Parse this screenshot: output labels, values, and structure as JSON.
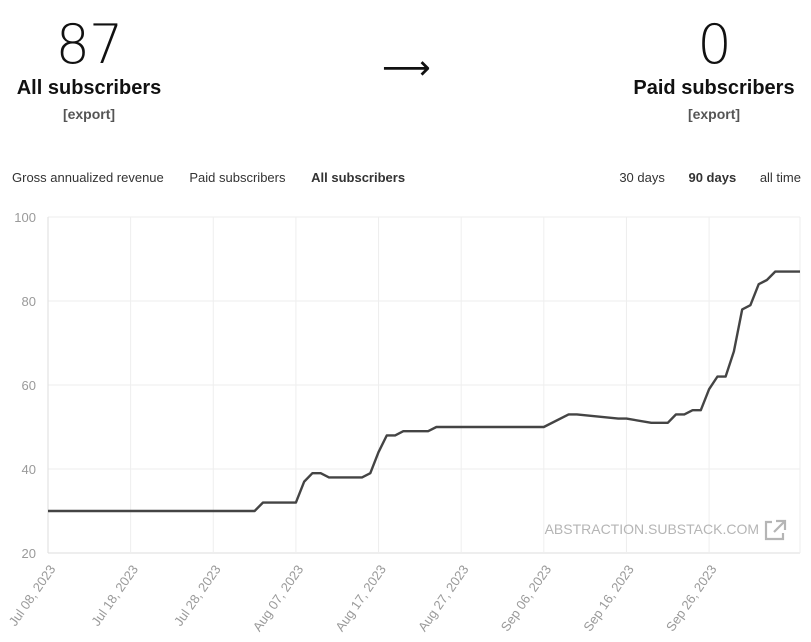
{
  "stats": {
    "left": {
      "value": "87",
      "label": "All subscribers",
      "export": "[export]"
    },
    "arrow": "⟶",
    "right": {
      "value": "0",
      "label": "Paid subscribers",
      "export": "[export]"
    }
  },
  "metric_tabs": [
    "Gross annualized revenue",
    "Paid subscribers",
    "All subscribers"
  ],
  "active_metric": "All subscribers",
  "range_tabs": [
    "30 days",
    "90 days",
    "all time"
  ],
  "active_range": "90 days",
  "watermark": "ABSTRACTION.SUBSTACK.COM",
  "colors": {
    "line": "#444444",
    "grid": "#eeeeee",
    "tick": "#9a9a9a"
  },
  "chart_data": {
    "type": "line",
    "title": "",
    "xlabel": "",
    "ylabel": "",
    "ylim": [
      20,
      100
    ],
    "yticks": [
      20,
      40,
      60,
      80,
      100
    ],
    "xlim": [
      "2023-07-08",
      "2023-10-07"
    ],
    "xticks": [
      "Jul 08, 2023",
      "Jul 18, 2023",
      "Jul 28, 2023",
      "Aug 07, 2023",
      "Aug 17, 2023",
      "Aug 27, 2023",
      "Sep 06, 2023",
      "Sep 16, 2023",
      "Sep 26, 2023"
    ],
    "grid": true,
    "series": [
      {
        "x": [
          "2023-07-08",
          "2023-07-18",
          "2023-07-28",
          "2023-08-02",
          "2023-08-03",
          "2023-08-07",
          "2023-08-08",
          "2023-08-09",
          "2023-08-10",
          "2023-08-11",
          "2023-08-12",
          "2023-08-15",
          "2023-08-16",
          "2023-08-17",
          "2023-08-18",
          "2023-08-19",
          "2023-08-20",
          "2023-08-23",
          "2023-08-24",
          "2023-09-05",
          "2023-09-06",
          "2023-09-09",
          "2023-09-10",
          "2023-09-15",
          "2023-09-16",
          "2023-09-19",
          "2023-09-20",
          "2023-09-21",
          "2023-09-22",
          "2023-09-23",
          "2023-09-24",
          "2023-09-25",
          "2023-09-26",
          "2023-09-27",
          "2023-09-28",
          "2023-09-29",
          "2023-09-30",
          "2023-10-01",
          "2023-10-02",
          "2023-10-03",
          "2023-10-04",
          "2023-10-05",
          "2023-10-06",
          "2023-10-07"
        ],
        "values": [
          30,
          30,
          30,
          30,
          32,
          32,
          37,
          39,
          39,
          38,
          38,
          38,
          39,
          44,
          48,
          48,
          49,
          49,
          50,
          50,
          50,
          53,
          53,
          52,
          52,
          51,
          51,
          51,
          53,
          53,
          54,
          54,
          59,
          62,
          62,
          68,
          78,
          79,
          84,
          85,
          87,
          87,
          87,
          87
        ]
      }
    ]
  }
}
